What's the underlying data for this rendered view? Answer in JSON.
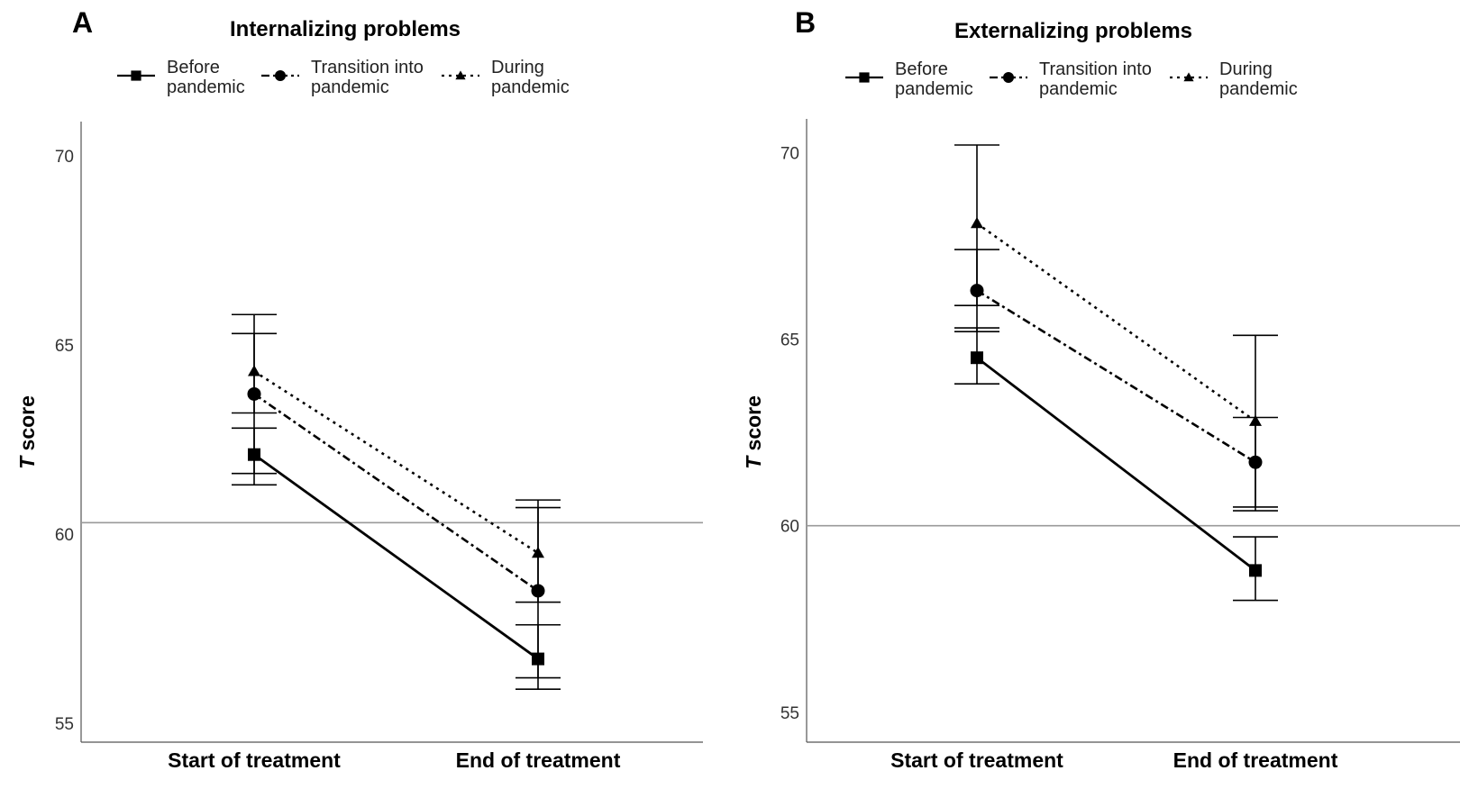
{
  "chart_data": [
    {
      "panel": "A",
      "type": "line",
      "title": "Internalizing problems",
      "ylabel_italic": "T",
      "ylabel_rest": " score",
      "xlabel": "",
      "categories": [
        "Start of treatment",
        "End of treatment"
      ],
      "ylim": [
        54.5,
        70.9
      ],
      "yticks": [
        55,
        60,
        65,
        70
      ],
      "reference_line": 60.3,
      "legend_position": "top",
      "series": [
        {
          "name_line1": "Before",
          "name_line2": "pandemic",
          "marker": "square",
          "dash": "solid",
          "values": [
            62.1,
            56.7
          ],
          "lower": [
            61.3,
            55.9
          ],
          "upper": [
            62.8,
            57.6
          ]
        },
        {
          "name_line1": "Transition into",
          "name_line2": "pandemic",
          "marker": "circle",
          "dash": "dashdot",
          "values": [
            63.7,
            58.5
          ],
          "lower": [
            61.6,
            56.2
          ],
          "upper": [
            65.3,
            60.7
          ]
        },
        {
          "name_line1": "During",
          "name_line2": "pandemic",
          "marker": "triangle",
          "dash": "dotted",
          "values": [
            64.3,
            59.5
          ],
          "lower": [
            63.2,
            58.2
          ],
          "upper": [
            65.8,
            60.9
          ]
        }
      ]
    },
    {
      "panel": "B",
      "type": "line",
      "title": "Externalizing problems",
      "ylabel_italic": "T",
      "ylabel_rest": " score",
      "xlabel": "",
      "categories": [
        "Start of treatment",
        "End of treatment"
      ],
      "ylim": [
        54.2,
        70.9
      ],
      "yticks": [
        55,
        60,
        65,
        70
      ],
      "reference_line": 60.0,
      "legend_position": "top",
      "series": [
        {
          "name_line1": "Before",
          "name_line2": "pandemic",
          "marker": "square",
          "dash": "solid",
          "values": [
            64.5,
            58.8
          ],
          "lower": [
            63.8,
            58.0
          ],
          "upper": [
            65.3,
            59.7
          ]
        },
        {
          "name_line1": "Transition into",
          "name_line2": "pandemic",
          "marker": "circle",
          "dash": "dashdot",
          "values": [
            66.3,
            61.7
          ],
          "lower": [
            65.2,
            60.4
          ],
          "upper": [
            67.4,
            62.9
          ]
        },
        {
          "name_line1": "During",
          "name_line2": "pandemic",
          "marker": "triangle",
          "dash": "dotted",
          "values": [
            68.1,
            62.8
          ],
          "lower": [
            65.9,
            60.5
          ],
          "upper": [
            70.2,
            65.1
          ]
        }
      ]
    }
  ]
}
